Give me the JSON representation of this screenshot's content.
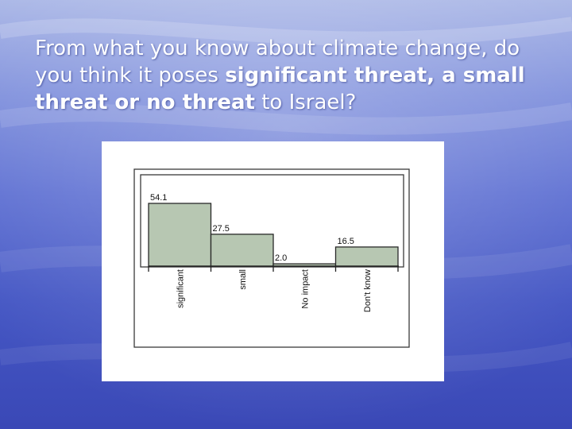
{
  "slide": {
    "question_parts": [
      {
        "text": "From what you know about climate change, do you think it poses ",
        "bold": false
      },
      {
        "text": "significant threat, a small threat or no threat",
        "bold": true
      },
      {
        "text": " to Israel?",
        "bold": false
      }
    ]
  },
  "colors": {
    "bar_fill": "#b7c7b2",
    "bar_stroke": "#2a2a2a",
    "text": "#ffffff"
  },
  "chart_data": {
    "type": "bar",
    "categories": [
      "significant",
      "small",
      "No impact",
      "Don't know"
    ],
    "values": [
      54.1,
      27.5,
      2.0,
      16.5
    ],
    "value_labels": [
      "54.1",
      "27.5",
      "2.0",
      "16.5"
    ],
    "title": "",
    "xlabel": "",
    "ylabel": "",
    "ylim": [
      0,
      54.1
    ],
    "grid": false,
    "legend": "none"
  }
}
